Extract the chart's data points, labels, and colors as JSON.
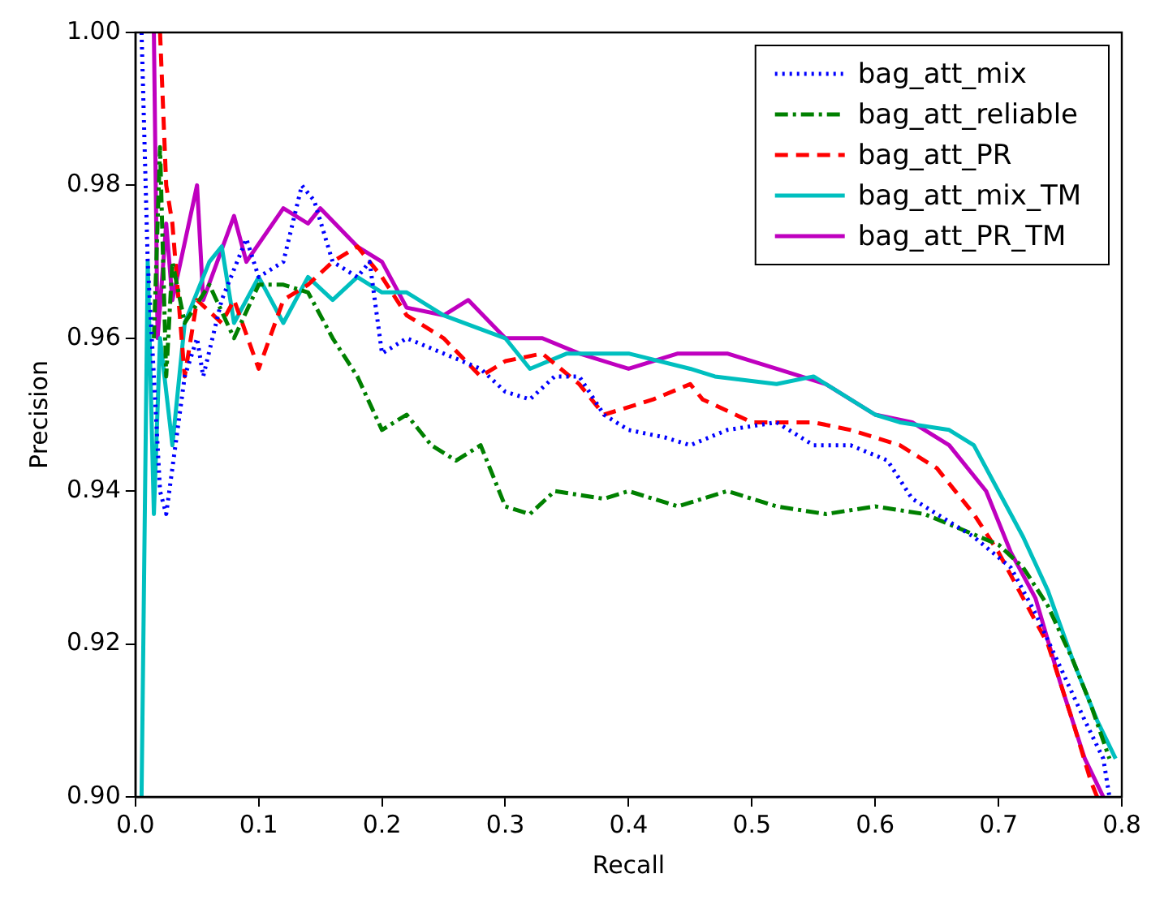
{
  "chart_data": {
    "type": "line",
    "xlabel": "Recall",
    "ylabel": "Precision",
    "xlim": [
      0,
      0.8
    ],
    "ylim": [
      0.9,
      1.0
    ],
    "xticks": [
      {
        "value": 0,
        "label": "0.0"
      },
      0.1,
      0.2,
      0.3,
      0.4,
      0.5,
      0.6,
      0.7,
      0.8
    ],
    "yticks": [
      {
        "value": 0.9,
        "label": "0.90"
      },
      0.92,
      0.94,
      0.96,
      0.98,
      {
        "value": 1.0,
        "label": "1.00"
      }
    ],
    "grid": false,
    "legend": "top right",
    "marker": "none",
    "series": [
      {
        "name": "bag_att_mix",
        "color": "#0000ff",
        "line_style": "dotted",
        "x": [
          0.005,
          0.01,
          0.02,
          0.025,
          0.04,
          0.05,
          0.055,
          0.07,
          0.09,
          0.1,
          0.12,
          0.135,
          0.145,
          0.16,
          0.18,
          0.19,
          0.2,
          0.22,
          0.25,
          0.28,
          0.3,
          0.32,
          0.34,
          0.36,
          0.38,
          0.4,
          0.43,
          0.45,
          0.48,
          0.52,
          0.55,
          0.58,
          0.61,
          0.63,
          0.65,
          0.68,
          0.71,
          0.73,
          0.75,
          0.77,
          0.785,
          0.79
        ],
        "values": [
          1.0,
          0.97,
          0.94,
          0.937,
          0.955,
          0.96,
          0.955,
          0.965,
          0.973,
          0.968,
          0.97,
          0.98,
          0.978,
          0.97,
          0.968,
          0.97,
          0.958,
          0.96,
          0.958,
          0.956,
          0.953,
          0.952,
          0.955,
          0.955,
          0.95,
          0.948,
          0.947,
          0.946,
          0.948,
          0.949,
          0.946,
          0.946,
          0.944,
          0.939,
          0.937,
          0.934,
          0.93,
          0.924,
          0.917,
          0.91,
          0.905,
          0.9
        ]
      },
      {
        "name": "bag_att_reliable",
        "color": "#008000",
        "line_style": "dashdot",
        "x": [
          0.015,
          0.02,
          0.025,
          0.03,
          0.04,
          0.06,
          0.08,
          0.1,
          0.12,
          0.14,
          0.16,
          0.18,
          0.2,
          0.22,
          0.24,
          0.26,
          0.28,
          0.3,
          0.32,
          0.34,
          0.38,
          0.4,
          0.44,
          0.48,
          0.52,
          0.56,
          0.6,
          0.64,
          0.67,
          0.7,
          0.72,
          0.74,
          0.76,
          0.775,
          0.79
        ],
        "values": [
          0.96,
          0.985,
          0.955,
          0.97,
          0.962,
          0.967,
          0.96,
          0.967,
          0.967,
          0.966,
          0.96,
          0.955,
          0.948,
          0.95,
          0.946,
          0.944,
          0.946,
          0.938,
          0.937,
          0.94,
          0.939,
          0.94,
          0.938,
          0.94,
          0.938,
          0.937,
          0.938,
          0.937,
          0.935,
          0.933,
          0.93,
          0.925,
          0.918,
          0.912,
          0.905
        ]
      },
      {
        "name": "bag_att_PR",
        "color": "#ff0000",
        "line_style": "dashed",
        "x": [
          0.02,
          0.025,
          0.03,
          0.04,
          0.05,
          0.07,
          0.08,
          0.1,
          0.12,
          0.14,
          0.16,
          0.18,
          0.2,
          0.22,
          0.25,
          0.28,
          0.3,
          0.33,
          0.36,
          0.38,
          0.42,
          0.45,
          0.46,
          0.5,
          0.55,
          0.58,
          0.62,
          0.65,
          0.68,
          0.7,
          0.72,
          0.74,
          0.76,
          0.775,
          0.78
        ],
        "values": [
          1.0,
          0.98,
          0.975,
          0.955,
          0.965,
          0.962,
          0.965,
          0.956,
          0.965,
          0.967,
          0.97,
          0.972,
          0.968,
          0.963,
          0.96,
          0.955,
          0.957,
          0.958,
          0.954,
          0.95,
          0.952,
          0.954,
          0.952,
          0.949,
          0.949,
          0.948,
          0.946,
          0.943,
          0.937,
          0.932,
          0.926,
          0.92,
          0.91,
          0.902,
          0.9
        ]
      },
      {
        "name": "bag_att_mix_TM",
        "color": "#00bfbf",
        "line_style": "solid",
        "x": [
          0.005,
          0.01,
          0.015,
          0.02,
          0.03,
          0.04,
          0.06,
          0.07,
          0.08,
          0.1,
          0.12,
          0.14,
          0.16,
          0.18,
          0.2,
          0.22,
          0.25,
          0.3,
          0.32,
          0.35,
          0.4,
          0.45,
          0.47,
          0.52,
          0.55,
          0.6,
          0.62,
          0.66,
          0.68,
          0.7,
          0.72,
          0.74,
          0.76,
          0.78,
          0.795
        ],
        "values": [
          0.9,
          0.97,
          0.937,
          0.96,
          0.946,
          0.962,
          0.97,
          0.972,
          0.962,
          0.968,
          0.962,
          0.968,
          0.965,
          0.968,
          0.966,
          0.966,
          0.963,
          0.96,
          0.956,
          0.958,
          0.958,
          0.956,
          0.955,
          0.954,
          0.955,
          0.95,
          0.949,
          0.948,
          0.946,
          0.94,
          0.934,
          0.927,
          0.918,
          0.91,
          0.905
        ]
      },
      {
        "name": "bag_att_PR_TM",
        "color": "#bf00bf",
        "line_style": "solid",
        "x": [
          0.015,
          0.018,
          0.025,
          0.03,
          0.05,
          0.055,
          0.08,
          0.09,
          0.12,
          0.14,
          0.15,
          0.18,
          0.2,
          0.22,
          0.25,
          0.27,
          0.3,
          0.33,
          0.36,
          0.4,
          0.44,
          0.48,
          0.52,
          0.56,
          0.6,
          0.63,
          0.66,
          0.69,
          0.71,
          0.73,
          0.75,
          0.77,
          0.785
        ],
        "values": [
          1.0,
          0.96,
          0.975,
          0.965,
          0.98,
          0.965,
          0.976,
          0.97,
          0.977,
          0.975,
          0.977,
          0.972,
          0.97,
          0.964,
          0.963,
          0.965,
          0.96,
          0.96,
          0.958,
          0.956,
          0.958,
          0.958,
          0.956,
          0.954,
          0.95,
          0.949,
          0.946,
          0.94,
          0.932,
          0.926,
          0.915,
          0.905,
          0.9
        ]
      }
    ]
  }
}
